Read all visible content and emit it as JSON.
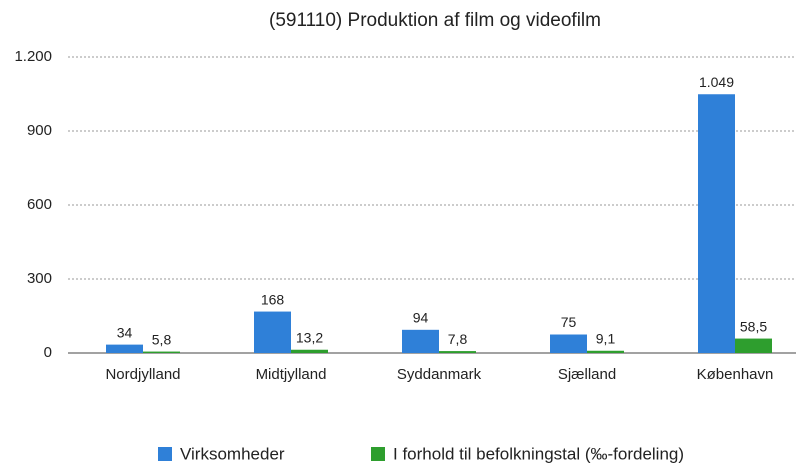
{
  "chart_data": {
    "type": "bar",
    "title": "(591110) Produktion af film og videofilm",
    "categories": [
      "Nordjylland",
      "Midtjylland",
      "Syddanmark",
      "Sjælland",
      "København"
    ],
    "series": [
      {
        "name": "Virksomheder",
        "color": "#2f80d8",
        "values": [
          34,
          168,
          94,
          75,
          1049
        ],
        "value_labels": [
          "34",
          "168",
          "94",
          "75",
          "1.049"
        ]
      },
      {
        "name": "I forhold til befolkningstal (‰-fordeling)",
        "color": "#2e9e2e",
        "values": [
          5.8,
          13.2,
          7.8,
          9.1,
          58.5
        ],
        "value_labels": [
          "5,8",
          "13,2",
          "7,8",
          "9,1",
          "58,5"
        ]
      }
    ],
    "ylim": [
      0,
      1200
    ],
    "yticks": [
      0,
      300,
      600,
      900,
      {
        "value": 1200,
        "label": "1.200"
      }
    ],
    "grid": true
  }
}
